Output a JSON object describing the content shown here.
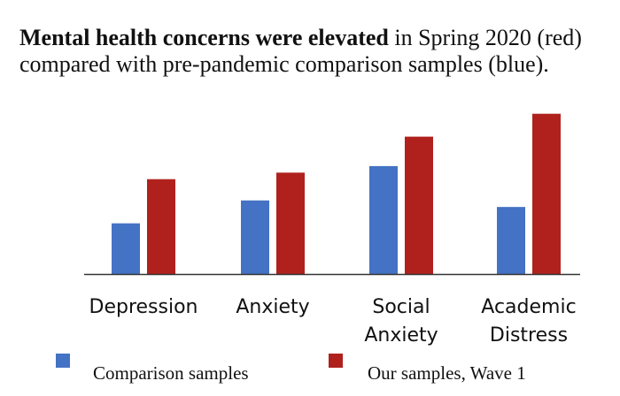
{
  "title": {
    "bold": "Mental health concerns were elevated",
    "rest": " in Spring 2020 (red) compared with pre-pandemic comparison samples (blue)."
  },
  "colors": {
    "comparison": "#4472c4",
    "ours": "#b0211d"
  },
  "chart_data": {
    "type": "bar",
    "title": "Mental health concerns were elevated in Spring 2020 (red) compared with pre-pandemic comparison samples (blue).",
    "xlabel": "",
    "ylabel": "",
    "categories": [
      [
        "Depression"
      ],
      [
        "Anxiety"
      ],
      [
        "Social",
        "Anxiety"
      ],
      [
        "Academic",
        "Distress"
      ]
    ],
    "series": [
      {
        "name": "Comparison samples",
        "color": "#4472c4",
        "values": [
          31,
          45,
          66,
          41
        ]
      },
      {
        "name": "Our samples, Wave 1",
        "color": "#b0211d",
        "values": [
          58,
          62,
          84,
          98
        ]
      }
    ],
    "ylim": [
      0,
      100
    ],
    "grid": false,
    "legend_position": "bottom"
  }
}
